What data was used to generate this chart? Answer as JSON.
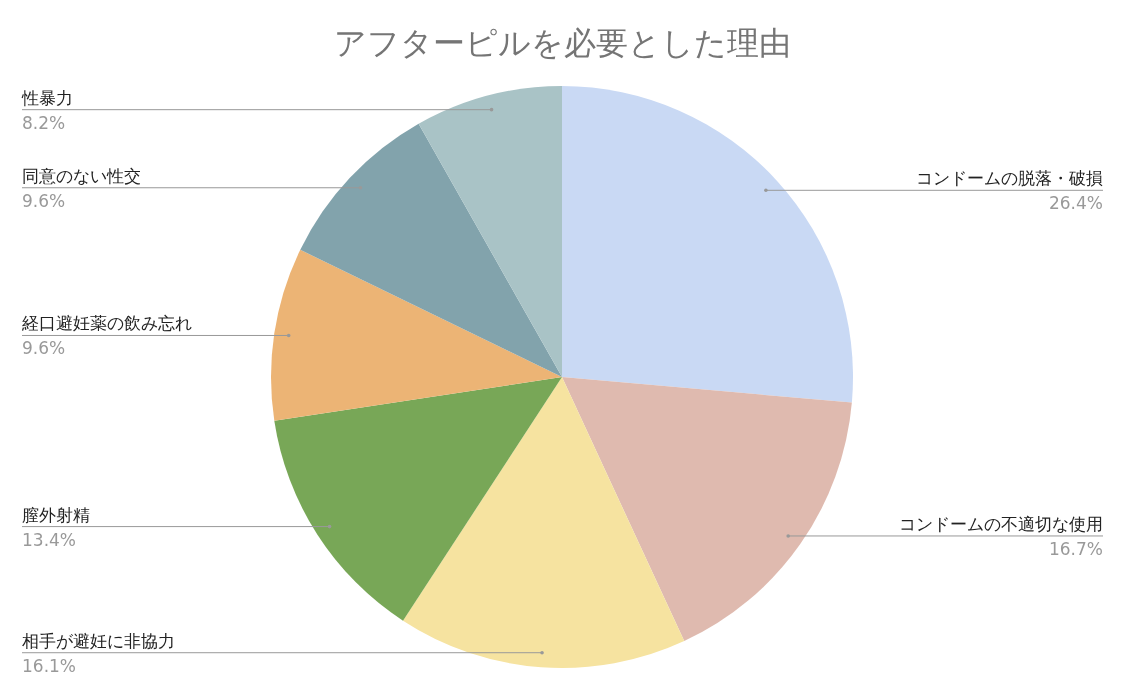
{
  "chart_data": {
    "type": "pie",
    "title": "アフターピルを必要とした理由",
    "categories": [
      "コンドームの脱落・破損",
      "コンドームの不適切な使用",
      "相手が避妊に非協力",
      "膣外射精",
      "経口避妊薬の飲み忘れ",
      "同意のない性交",
      "性暴力"
    ],
    "values": [
      26.4,
      16.7,
      16.1,
      13.4,
      9.6,
      9.6,
      8.2
    ],
    "colors": [
      "#c9d9f4",
      "#dfbaaf",
      "#f6e3a0",
      "#78a757",
      "#ecb475",
      "#82a3ac",
      "#a9c3c6"
    ],
    "value_labels": [
      "26.4%",
      "16.7%",
      "16.1%",
      "13.4%",
      "9.6%",
      "9.6%",
      "8.2%"
    ]
  }
}
